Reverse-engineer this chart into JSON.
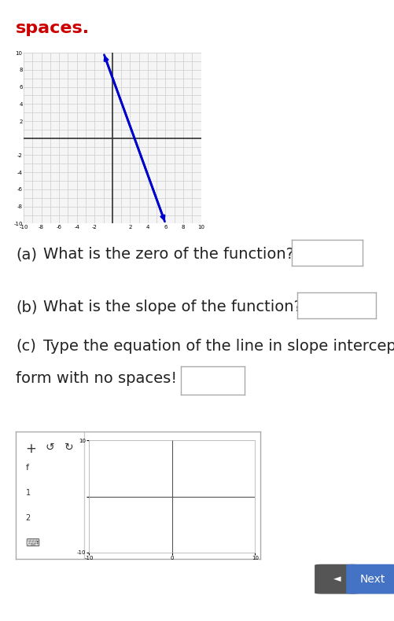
{
  "bg_color": "#ffffff",
  "title_text": "spaces.",
  "title_color": "#cc0000",
  "title_fontsize": 16,
  "graph": {
    "xlim": [
      -10,
      10
    ],
    "ylim": [
      -10,
      10
    ],
    "line_x1": -1,
    "line_y1": 10,
    "line_x2": 6,
    "line_y2": -10,
    "line_color": "#0000cc",
    "line_width": 2.0,
    "grid_color": "#cccccc",
    "axis_color": "#333333"
  },
  "desmos_bar": {
    "bg_color": "#1a6b3c",
    "text_color": "#ffffff"
  },
  "bottom_buttons": {
    "prev_bg": "#555555",
    "next_bg": "#4472c4",
    "text_color": "#ffffff"
  }
}
